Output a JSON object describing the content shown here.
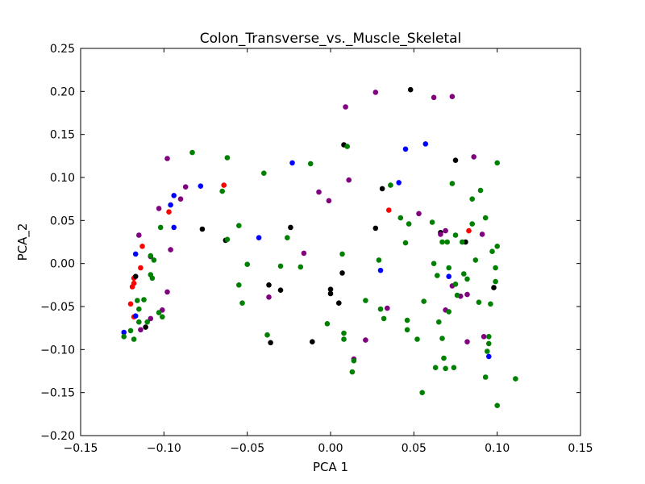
{
  "chart_data": {
    "type": "scatter",
    "title": "Colon_Transverse_vs._Muscle_Skeletal",
    "xlabel": "PCA 1",
    "ylabel": "PCA_2",
    "xlim": [
      -0.15,
      0.15
    ],
    "ylim": [
      -0.2,
      0.25
    ],
    "xticks": [
      -0.15,
      -0.1,
      -0.05,
      0.0,
      0.05,
      0.1,
      0.15
    ],
    "xtick_labels": [
      "−0.15",
      "−0.10",
      "−0.05",
      "0.00",
      "0.05",
      "0.10",
      "0.15"
    ],
    "yticks": [
      -0.2,
      -0.15,
      -0.1,
      -0.05,
      0.0,
      0.05,
      0.1,
      0.15,
      0.2,
      0.25
    ],
    "ytick_labels": [
      "−0.20",
      "−0.15",
      "−0.10",
      "−0.05",
      "0.00",
      "0.05",
      "0.10",
      "0.15",
      "0.20",
      "0.25"
    ],
    "grid": false,
    "legend": "none",
    "series": [
      {
        "color": "#ff0000",
        "points": [
          [
            -0.113,
            0.02
          ],
          [
            -0.114,
            -0.005
          ],
          [
            -0.118,
            -0.017
          ],
          [
            -0.119,
            -0.027
          ],
          [
            -0.118,
            -0.023
          ],
          [
            -0.12,
            -0.047
          ],
          [
            -0.118,
            -0.062
          ],
          [
            -0.097,
            0.06
          ],
          [
            -0.064,
            0.091
          ],
          [
            0.035,
            0.062
          ],
          [
            0.083,
            0.038
          ]
        ]
      },
      {
        "color": "#0000ff",
        "points": [
          [
            -0.124,
            -0.08
          ],
          [
            -0.117,
            0.011
          ],
          [
            -0.117,
            -0.061
          ],
          [
            -0.096,
            0.068
          ],
          [
            -0.094,
            0.079
          ],
          [
            -0.094,
            0.042
          ],
          [
            -0.078,
            0.09
          ],
          [
            -0.043,
            0.03
          ],
          [
            -0.023,
            0.117
          ],
          [
            0.03,
            -0.008
          ],
          [
            0.045,
            0.133
          ],
          [
            0.041,
            0.094
          ],
          [
            0.057,
            0.139
          ],
          [
            0.071,
            -0.015
          ],
          [
            0.095,
            -0.108
          ]
        ]
      },
      {
        "color": "#000000",
        "points": [
          [
            -0.117,
            -0.015
          ],
          [
            -0.111,
            -0.074
          ],
          [
            -0.077,
            0.04
          ],
          [
            -0.063,
            0.027
          ],
          [
            -0.037,
            -0.025
          ],
          [
            -0.036,
            -0.092
          ],
          [
            -0.03,
            -0.031
          ],
          [
            -0.024,
            0.042
          ],
          [
            -0.011,
            -0.091
          ],
          [
            0.0,
            -0.03
          ],
          [
            0.0,
            -0.035
          ],
          [
            0.005,
            -0.046
          ],
          [
            0.008,
            0.138
          ],
          [
            0.007,
            -0.011
          ],
          [
            0.027,
            0.041
          ],
          [
            0.031,
            0.087
          ],
          [
            0.048,
            0.202
          ],
          [
            0.066,
            0.036
          ],
          [
            0.075,
            0.12
          ],
          [
            0.081,
            0.025
          ],
          [
            0.098,
            -0.028
          ]
        ]
      },
      {
        "color": "#800080",
        "points": [
          [
            -0.115,
            0.033
          ],
          [
            -0.108,
            0.008
          ],
          [
            -0.108,
            -0.064
          ],
          [
            -0.114,
            -0.077
          ],
          [
            -0.101,
            -0.054
          ],
          [
            -0.098,
            0.122
          ],
          [
            -0.098,
            -0.033
          ],
          [
            -0.096,
            0.016
          ],
          [
            -0.09,
            0.075
          ],
          [
            -0.087,
            0.089
          ],
          [
            -0.103,
            0.064
          ],
          [
            -0.037,
            -0.039
          ],
          [
            -0.016,
            0.012
          ],
          [
            -0.007,
            0.083
          ],
          [
            -0.001,
            0.073
          ],
          [
            0.009,
            0.182
          ],
          [
            0.011,
            0.097
          ],
          [
            0.014,
            -0.111
          ],
          [
            0.021,
            -0.089
          ],
          [
            0.027,
            0.199
          ],
          [
            0.034,
            -0.052
          ],
          [
            0.053,
            0.058
          ],
          [
            0.062,
            0.193
          ],
          [
            0.066,
            0.034
          ],
          [
            0.069,
            0.038
          ],
          [
            0.069,
            -0.054
          ],
          [
            0.073,
            0.194
          ],
          [
            0.073,
            -0.026
          ],
          [
            0.078,
            -0.038
          ],
          [
            0.082,
            -0.036
          ],
          [
            0.082,
            -0.091
          ],
          [
            0.086,
            0.124
          ],
          [
            0.091,
            0.034
          ],
          [
            0.092,
            -0.085
          ]
        ]
      },
      {
        "color": "#008000",
        "points": [
          [
            -0.124,
            -0.085
          ],
          [
            -0.12,
            -0.078
          ],
          [
            -0.118,
            -0.088
          ],
          [
            -0.116,
            -0.043
          ],
          [
            -0.115,
            -0.053
          ],
          [
            -0.115,
            -0.068
          ],
          [
            -0.112,
            -0.042
          ],
          [
            -0.11,
            -0.068
          ],
          [
            -0.108,
            0.009
          ],
          [
            -0.108,
            -0.013
          ],
          [
            -0.107,
            -0.017
          ],
          [
            -0.106,
            0.004
          ],
          [
            -0.103,
            -0.057
          ],
          [
            -0.101,
            -0.062
          ],
          [
            -0.102,
            0.042
          ],
          [
            -0.083,
            0.129
          ],
          [
            -0.065,
            0.084
          ],
          [
            -0.062,
            0.123
          ],
          [
            -0.062,
            0.028
          ],
          [
            -0.055,
            0.044
          ],
          [
            -0.055,
            -0.025
          ],
          [
            -0.053,
            -0.046
          ],
          [
            -0.05,
            -0.001
          ],
          [
            -0.04,
            0.105
          ],
          [
            -0.038,
            -0.083
          ],
          [
            -0.03,
            -0.003
          ],
          [
            -0.026,
            0.03
          ],
          [
            -0.018,
            -0.004
          ],
          [
            -0.012,
            0.116
          ],
          [
            -0.002,
            -0.07
          ],
          [
            0.007,
            0.011
          ],
          [
            0.008,
            -0.081
          ],
          [
            0.008,
            -0.088
          ],
          [
            0.01,
            0.136
          ],
          [
            0.013,
            -0.126
          ],
          [
            0.014,
            -0.113
          ],
          [
            0.021,
            -0.043
          ],
          [
            0.029,
            0.004
          ],
          [
            0.03,
            -0.053
          ],
          [
            0.032,
            -0.064
          ],
          [
            0.036,
            0.091
          ],
          [
            0.042,
            0.053
          ],
          [
            0.045,
            0.024
          ],
          [
            0.046,
            -0.066
          ],
          [
            0.046,
            -0.077
          ],
          [
            0.047,
            0.046
          ],
          [
            0.052,
            -0.088
          ],
          [
            0.055,
            -0.15
          ],
          [
            0.056,
            -0.044
          ],
          [
            0.061,
            0.048
          ],
          [
            0.062,
            0.0
          ],
          [
            0.063,
            -0.121
          ],
          [
            0.064,
            -0.014
          ],
          [
            0.065,
            -0.068
          ],
          [
            0.067,
            0.025
          ],
          [
            0.067,
            -0.087
          ],
          [
            0.068,
            -0.11
          ],
          [
            0.069,
            -0.122
          ],
          [
            0.07,
            0.025
          ],
          [
            0.071,
            -0.005
          ],
          [
            0.071,
            -0.056
          ],
          [
            0.073,
            0.093
          ],
          [
            0.074,
            -0.121
          ],
          [
            0.075,
            0.033
          ],
          [
            0.075,
            -0.024
          ],
          [
            0.076,
            -0.037
          ],
          [
            0.079,
            0.025
          ],
          [
            0.08,
            -0.012
          ],
          [
            0.082,
            -0.018
          ],
          [
            0.085,
            0.075
          ],
          [
            0.085,
            0.046
          ],
          [
            0.087,
            0.004
          ],
          [
            0.089,
            -0.045
          ],
          [
            0.09,
            0.085
          ],
          [
            0.093,
            0.053
          ],
          [
            0.093,
            -0.132
          ],
          [
            0.094,
            -0.102
          ],
          [
            0.095,
            -0.085
          ],
          [
            0.095,
            -0.093
          ],
          [
            0.096,
            -0.047
          ],
          [
            0.097,
            0.014
          ],
          [
            0.099,
            -0.005
          ],
          [
            0.099,
            -0.021
          ],
          [
            0.1,
            0.117
          ],
          [
            0.1,
            0.02
          ],
          [
            0.1,
            -0.165
          ],
          [
            0.111,
            -0.134
          ]
        ]
      }
    ]
  }
}
